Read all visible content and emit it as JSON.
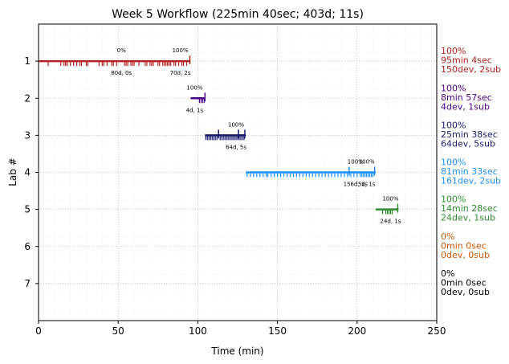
{
  "chart_data": {
    "type": "timeline",
    "title": "Week 5 Workflow (225min 40sec; 403d; 11s)",
    "xlabel": "Time (min)",
    "ylabel": "Lab #",
    "xlim": [
      0,
      250
    ],
    "ylim": [
      8,
      0
    ],
    "x_ticks": [
      "0",
      "50",
      "100",
      "150",
      "200",
      "250"
    ],
    "x_tick_values": [
      0,
      50,
      100,
      150,
      200,
      250
    ],
    "y_ticks": [
      "1",
      "2",
      "3",
      "4",
      "5",
      "6",
      "7"
    ],
    "y_tick_values": [
      1,
      2,
      3,
      4,
      5,
      6,
      7
    ],
    "grid": true,
    "labs": [
      {
        "lab": 1,
        "color": "#b22222",
        "start": 0,
        "end": 95.1,
        "dev_ticks": [
          6,
          14,
          16,
          17,
          18,
          20,
          22,
          24,
          26,
          27,
          30,
          31,
          38,
          40,
          41,
          43,
          46,
          47,
          49,
          54,
          55,
          56,
          58,
          59,
          60,
          63,
          67,
          68,
          70,
          71,
          72,
          75,
          76,
          78,
          79,
          80,
          81,
          82,
          83,
          85,
          86,
          88,
          90,
          91,
          93
        ],
        "sub_ticks": [
          95
        ],
        "annotations": [
          {
            "x": 52,
            "label_above": "0%",
            "label_below": "80d, 0s"
          },
          {
            "x": 89,
            "label_above": "100%",
            "label_below": "70d, 2s"
          }
        ],
        "side_label": [
          "100%",
          "95min 4sec",
          "150dev, 2sub"
        ]
      },
      {
        "lab": 2,
        "color": "#4b0082",
        "start": 95.5,
        "end": 104.5,
        "dev_ticks": [
          101,
          102,
          103,
          104
        ],
        "sub_ticks": [
          104.5
        ],
        "annotations": [
          {
            "x": 98,
            "label_above": "100%",
            "label_below": "4d, 1s"
          }
        ],
        "side_label": [
          "100%",
          "8min 57sec",
          "4dev, 1sub"
        ]
      },
      {
        "lab": 3,
        "color": "#191970",
        "start": 104.5,
        "end": 130.1,
        "dev_ticks": [
          105,
          106,
          107,
          108,
          109,
          110,
          111,
          112,
          114,
          115,
          116,
          117,
          118,
          119,
          120,
          121,
          122,
          123,
          124,
          125,
          126,
          127,
          128,
          129
        ],
        "sub_ticks": [
          113,
          125.5,
          129.5
        ],
        "annotations": [
          {
            "x": 124,
            "label_above": "100%",
            "label_below": "64d, 5s"
          }
        ],
        "side_label": [
          "100%",
          "25min 38sec",
          "64dev, 5sub"
        ]
      },
      {
        "lab": 4,
        "color": "#1e90ff",
        "start": 130.1,
        "end": 211.6,
        "dev_ticks": [
          131,
          133,
          135,
          137,
          139,
          141,
          143,
          144,
          146,
          148,
          150,
          152,
          154,
          156,
          158,
          160,
          162,
          164,
          166,
          168,
          170,
          172,
          174,
          176,
          178,
          180,
          182,
          184,
          186,
          188,
          190,
          192,
          194,
          196,
          198,
          200,
          202,
          203,
          204,
          205,
          206,
          207,
          208,
          209,
          210
        ],
        "sub_ticks": [
          195,
          211
        ],
        "annotations": [
          {
            "x": 199,
            "label_above": "100%",
            "label_below": "156d, 1s"
          },
          {
            "x": 206,
            "label_above": "100%",
            "label_below": "5d, 1s"
          }
        ],
        "side_label": [
          "100%",
          "81min 33sec",
          "161dev, 2sub"
        ]
      },
      {
        "lab": 5,
        "color": "#2e8b2e",
        "start": 211.6,
        "end": 226,
        "dev_ticks": [
          216,
          218,
          219,
          220,
          221,
          222
        ],
        "sub_ticks": [
          225.5
        ],
        "annotations": [
          {
            "x": 221,
            "label_above": "100%",
            "label_below": "24d, 1s"
          }
        ],
        "side_label": [
          "100%",
          "14min 28sec",
          "24dev, 1sub"
        ]
      },
      {
        "lab": 6,
        "color": "#cc5500",
        "start": null,
        "end": null,
        "dev_ticks": [],
        "sub_ticks": [],
        "annotations": [],
        "side_label": [
          "0%",
          "0min 0sec",
          "0dev, 0sub"
        ]
      },
      {
        "lab": 7,
        "color": "#000000",
        "start": null,
        "end": null,
        "dev_ticks": [],
        "sub_ticks": [],
        "annotations": [],
        "side_label": [
          "0%",
          "0min 0sec",
          "0dev, 0sub"
        ]
      }
    ]
  }
}
